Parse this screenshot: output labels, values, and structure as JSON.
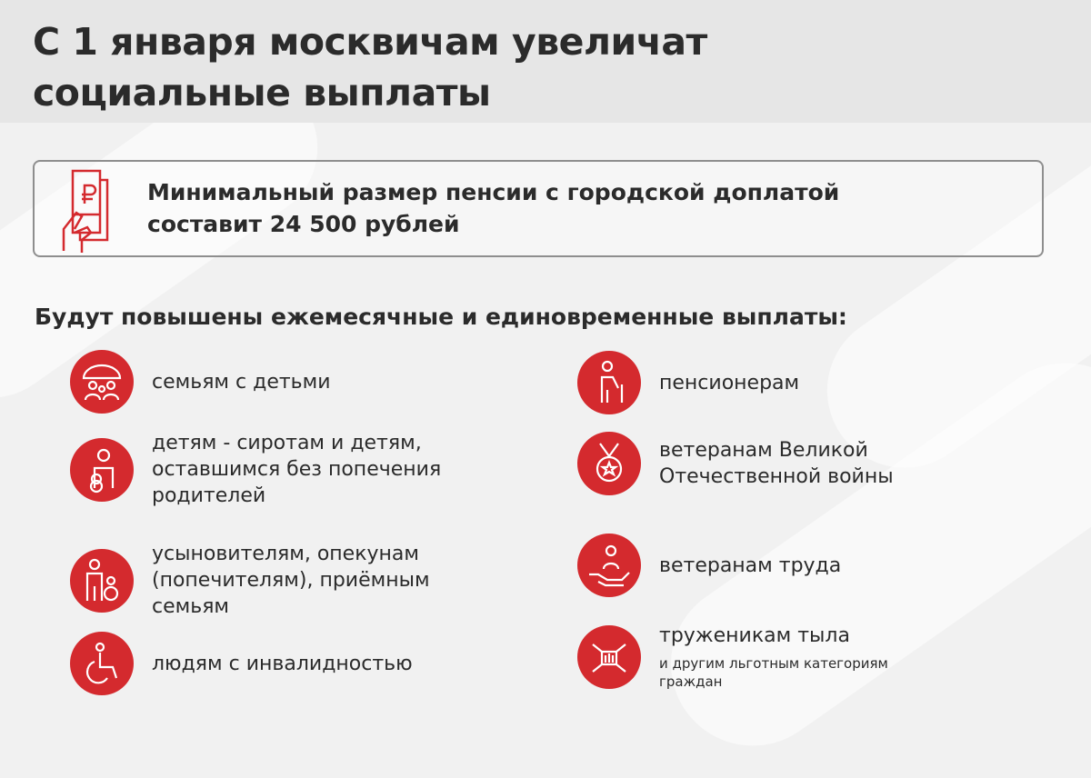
{
  "title": {
    "line1": "С 1 января москвичам увеличат",
    "line2": "социальные выплаты"
  },
  "highlight": {
    "icon": "ruble-phone-icon",
    "line1": "Минимальный размер пенсии с городской доплатой",
    "line2": "составит 24 500 рублей"
  },
  "subtitle": "Будут повышены ежемесячные и единовременные выплаты:",
  "accent_color": "#d42a2e",
  "left": [
    {
      "icon": "family-umbrella-icon",
      "lines": [
        "семьям с детьми"
      ]
    },
    {
      "icon": "child-teddy-icon",
      "lines": [
        "детям - сиротам и детям,",
        "оставшимся без попечения",
        "родителей"
      ]
    },
    {
      "icon": "guardian-child-icon",
      "lines": [
        "усыновителям, опекунам",
        "(попечителям), приёмным",
        "семьям"
      ]
    },
    {
      "icon": "wheelchair-icon",
      "lines": [
        "людям с инвалидностью"
      ]
    }
  ],
  "right": [
    {
      "icon": "elderly-cane-icon",
      "lines": [
        "пенсионерам"
      ]
    },
    {
      "icon": "medal-icon",
      "lines": [
        "ветеранам Великой",
        "Отечественной войны"
      ]
    },
    {
      "icon": "hand-person-icon",
      "lines": [
        "ветеранам труда"
      ]
    },
    {
      "icon": "joined-hands-icon",
      "lines": [
        "труженикам тыла"
      ],
      "note": "и другим льготным категориям граждан"
    }
  ]
}
